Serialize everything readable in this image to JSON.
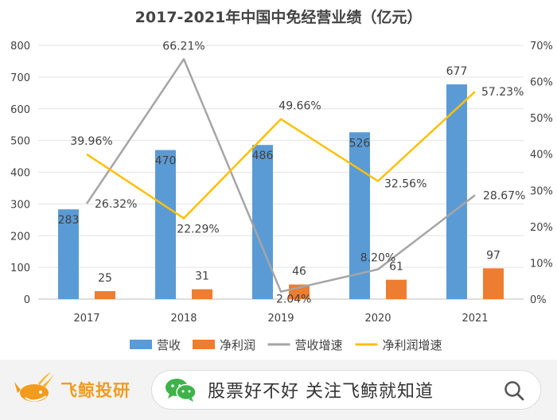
{
  "chart_data": {
    "type": "bar",
    "title": "2017-2021年中国中免经营业绩（亿元）",
    "categories": [
      "2017",
      "2018",
      "2019",
      "2020",
      "2021"
    ],
    "y_left": {
      "min": 0,
      "max": 800,
      "ticks": [
        "0",
        "100",
        "200",
        "300",
        "400",
        "500",
        "600",
        "700",
        "800"
      ]
    },
    "y_right": {
      "min": 0,
      "max": 70,
      "ticks": [
        "0%",
        "10%",
        "20%",
        "30%",
        "40%",
        "50%",
        "60%",
        "70%"
      ]
    },
    "series": [
      {
        "name": "营收",
        "kind": "bar",
        "axis": "left",
        "color": "#5b9bd5",
        "values": [
          283,
          470,
          486,
          526,
          677
        ],
        "labels": [
          "283",
          "470",
          "486",
          "526",
          "677"
        ]
      },
      {
        "name": "净利润",
        "kind": "bar",
        "axis": "left",
        "color": "#ed7d31",
        "values": [
          25,
          31,
          46,
          61,
          97
        ],
        "labels": [
          "25",
          "31",
          "46",
          "61",
          "97"
        ]
      },
      {
        "name": "营收增速",
        "kind": "line",
        "axis": "right",
        "color": "#a5a5a5",
        "values": [
          26.32,
          66.21,
          2.04,
          8.2,
          28.67
        ],
        "labels": [
          "26.32%",
          "66.21%",
          "2.04%",
          "8.20%",
          "28.67%"
        ]
      },
      {
        "name": "净利润增速",
        "kind": "line",
        "axis": "right",
        "color": "#ffc000",
        "values": [
          39.96,
          22.29,
          49.66,
          32.56,
          57.23
        ],
        "labels": [
          "39.96%",
          "22.29%",
          "49.66%",
          "32.56%",
          "57.23%"
        ]
      }
    ],
    "legend": "bottom",
    "grid": true
  },
  "footer": {
    "brand": "飞鲸投研",
    "search_text": "股票好不好 关注飞鲸就知道",
    "icons": [
      "whale-logo-icon",
      "wechat-icon",
      "search-icon"
    ],
    "colors": {
      "brand": "#f29b1c",
      "wechat": "#3fb24a"
    }
  }
}
